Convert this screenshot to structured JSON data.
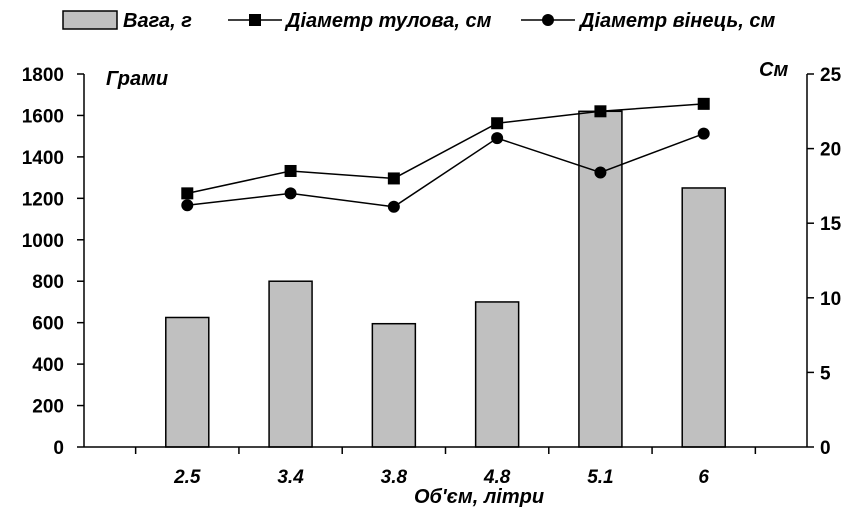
{
  "chart_data": {
    "type": "bar",
    "categories": [
      "2.5",
      "3.4",
      "3.8",
      "4.8",
      "5.1",
      "6"
    ],
    "xlabel": "Об'єм, літри",
    "ylabel": "Грами",
    "y2label": "См",
    "ylim": [
      0,
      1800
    ],
    "y2lim": [
      0,
      25
    ],
    "yticks": [
      "0",
      "200",
      "400",
      "600",
      "800",
      "1000",
      "1200",
      "1400",
      "1600",
      "1800"
    ],
    "y2ticks": [
      "0",
      "5",
      "10",
      "15",
      "20",
      "25"
    ],
    "legend_position": "top",
    "grid": false,
    "series": [
      {
        "name": "Вага, г",
        "kind": "bar",
        "axis": "left",
        "color": "#c0c0c0",
        "values": [
          625,
          800,
          595,
          700,
          1620,
          1250
        ]
      },
      {
        "name": "Діаметр тулова, см",
        "kind": "line",
        "axis": "right",
        "marker": "square",
        "color": "#000000",
        "values": [
          17,
          18.5,
          18,
          21.7,
          22.5,
          23
        ]
      },
      {
        "name": "Діаметр вінець, см",
        "kind": "line",
        "axis": "right",
        "marker": "circle",
        "color": "#000000",
        "values": [
          16.2,
          17,
          16.1,
          20.7,
          18.4,
          21
        ]
      }
    ]
  }
}
